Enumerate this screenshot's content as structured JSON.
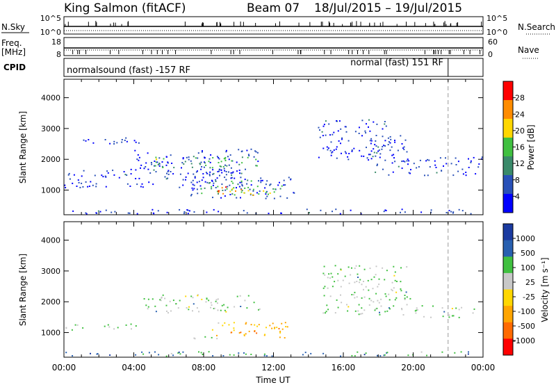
{
  "header": {
    "radar": "King Salmon (fitACF)",
    "beam": "Beam 07",
    "date_range": "18/Jul/2015 – 19/Jul/2015"
  },
  "top_panels": {
    "nsky_label": "N.Sky",
    "nsky_ticks": [
      "10^5",
      "10^0"
    ],
    "nsearch_label": "N.Search",
    "nsearch_ticks": [
      "10^5",
      "10^0"
    ],
    "freq_label": "Freq.",
    "freq_unit": "[MHz]",
    "freq_ticks": [
      "18",
      "8"
    ],
    "nave_label": "Nave",
    "nave_ticks": [
      "60",
      "0"
    ],
    "cpid_label": "CPID",
    "cpid_segments": [
      {
        "label": "normalsound (fast) -157 RF",
        "start_hour": 0,
        "end_hour": 22
      },
      {
        "label": "normal (fast) 151 RF",
        "start_hour": 22,
        "end_hour": 24
      }
    ],
    "mode_change_hour": 22
  },
  "chart_data": [
    {
      "type": "heatmap",
      "name": "power",
      "ylabel": "Slant Range [km]",
      "xlabel": "",
      "ylim": [
        200,
        4600
      ],
      "xlim_hours": [
        0,
        24
      ],
      "yticks": [
        1000,
        2000,
        3000,
        4000
      ],
      "colorbar": {
        "label": "Power [dB]",
        "ticks": [
          4,
          8,
          12,
          16,
          20,
          24,
          28
        ],
        "colors": [
          "#0000ff",
          "#2850b8",
          "#3a8a6a",
          "#40c040",
          "#ffd700",
          "#ff8c00",
          "#ff0000"
        ]
      },
      "regions": [
        {
          "t0": 0.0,
          "t1": 10.5,
          "r0": 1100,
          "r1": 1700,
          "level": 1
        },
        {
          "t0": 1.0,
          "t1": 5.0,
          "r0": 2500,
          "r1": 2750,
          "level": 1
        },
        {
          "t0": 3.8,
          "t1": 11.2,
          "r0": 1600,
          "r1": 2350,
          "level": 1
        },
        {
          "t0": 5.0,
          "t1": 11.2,
          "r0": 1750,
          "r1": 2150,
          "level": 3
        },
        {
          "t0": 7.0,
          "t1": 13.2,
          "r0": 750,
          "r1": 1450,
          "level": 1
        },
        {
          "t0": 7.8,
          "t1": 12.5,
          "r0": 850,
          "r1": 1350,
          "level": 3
        },
        {
          "t0": 8.5,
          "t1": 11.0,
          "r0": 850,
          "r1": 1150,
          "level": 5
        },
        {
          "t0": 8.8,
          "t1": 10.2,
          "r0": 850,
          "r1": 1000,
          "level": 6
        },
        {
          "t0": 14.5,
          "t1": 18.5,
          "r0": 2000,
          "r1": 3300,
          "level": 1
        },
        {
          "t0": 17.5,
          "t1": 19.8,
          "r0": 1500,
          "r1": 2800,
          "level": 1
        },
        {
          "t0": 19.5,
          "t1": 24.0,
          "r0": 1500,
          "r1": 2100,
          "level": 1
        },
        {
          "t0": 0.0,
          "t1": 24.0,
          "r0": 250,
          "r1": 400,
          "level": 1
        }
      ]
    },
    {
      "type": "heatmap",
      "name": "velocity",
      "ylabel": "Slant Range [km]",
      "xlabel": "Time UT",
      "ylim": [
        200,
        4600
      ],
      "xlim_hours": [
        0,
        24
      ],
      "yticks": [
        1000,
        2000,
        3000,
        4000
      ],
      "xticks": [
        "00:00",
        "04:00",
        "08:00",
        "12:00",
        "16:00",
        "20:00",
        "00:00"
      ],
      "colorbar": {
        "label": "Velocity [m s⁻¹]",
        "ticks": [
          1000,
          500,
          100,
          25,
          -25,
          -100,
          -500,
          -1000
        ],
        "colors": [
          "#1a3aa0",
          "#2860b0",
          "#40c040",
          "#c8c8c8",
          "#ffd700",
          "#ffa500",
          "#ff6a00",
          "#ff0000"
        ]
      },
      "regions": [
        {
          "t0": 0.0,
          "t1": 4.5,
          "r0": 1100,
          "r1": 1300,
          "level": 3
        },
        {
          "t0": 4.5,
          "t1": 11.2,
          "r0": 1650,
          "r1": 2250,
          "level": 3
        },
        {
          "t0": 7.0,
          "t1": 9.0,
          "r0": 800,
          "r1": 950,
          "level": 3
        },
        {
          "t0": 8.2,
          "t1": 13.0,
          "r0": 850,
          "r1": 1350,
          "level": 5
        },
        {
          "t0": 9.5,
          "t1": 11.0,
          "r0": 850,
          "r1": 1050,
          "level": 6
        },
        {
          "t0": 14.8,
          "t1": 19.8,
          "r0": 1600,
          "r1": 3200,
          "level": 3
        },
        {
          "t0": 20.0,
          "t1": 23.5,
          "r0": 1500,
          "r1": 1900,
          "level": 3
        },
        {
          "t0": 0.0,
          "t1": 24.0,
          "r0": 250,
          "r1": 400,
          "level": 2
        }
      ]
    }
  ]
}
